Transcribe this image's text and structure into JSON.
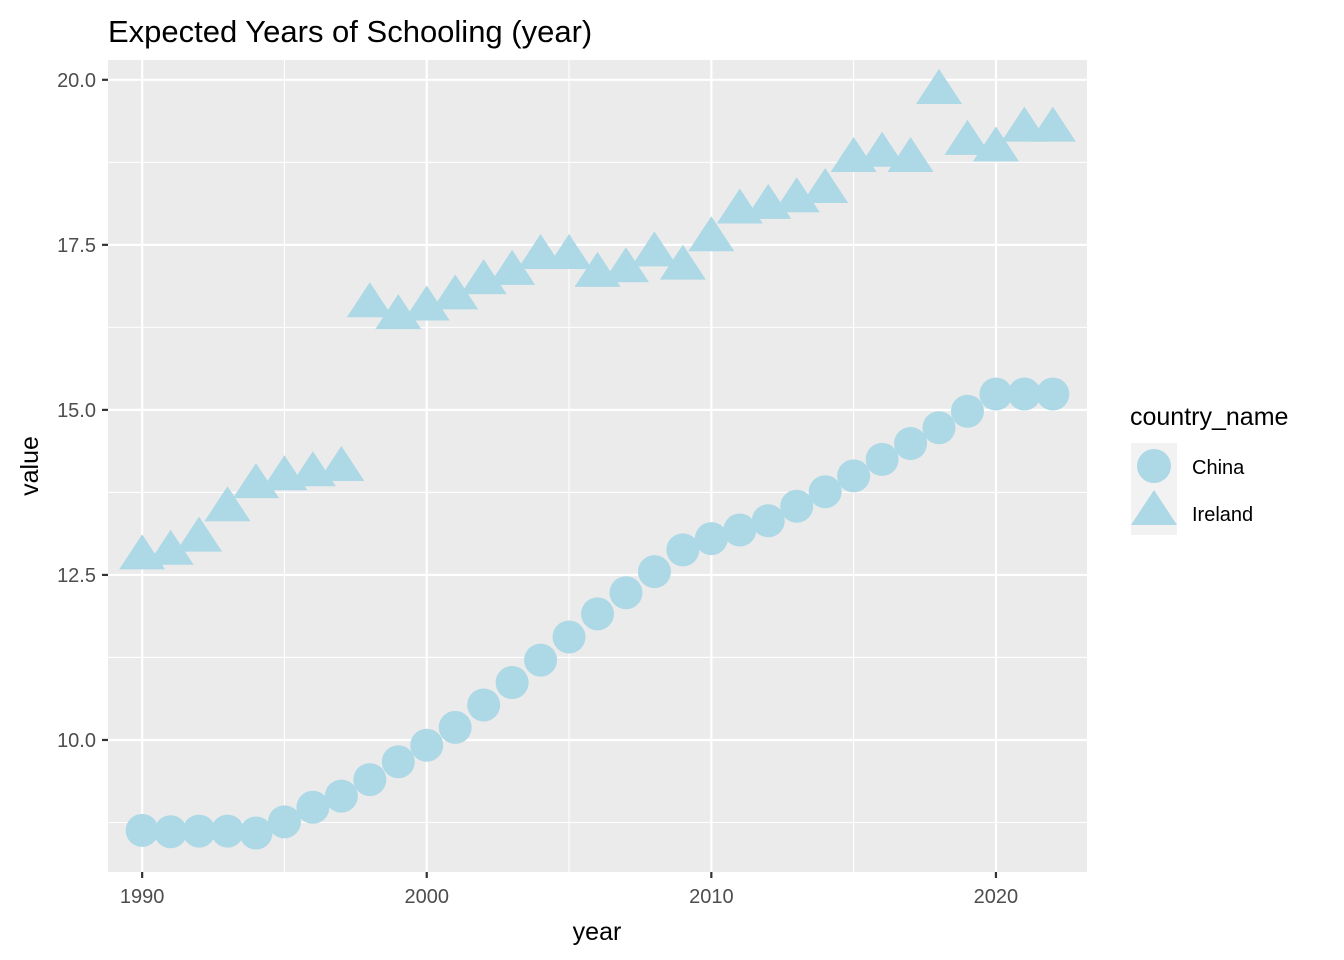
{
  "chart_data": {
    "type": "scatter",
    "title": "Expected Years of Schooling (year)",
    "xlabel": "year",
    "ylabel": "value",
    "xlim": [
      1988.8,
      1989.0
    ],
    "ylim": [
      8.0,
      20.3
    ],
    "x_ticks": [
      1990,
      2000,
      2010,
      2020
    ],
    "x_tick_labels": [
      "1990",
      "2000",
      "2010",
      "2020"
    ],
    "y_ticks": [
      10.0,
      12.5,
      15.0,
      17.5,
      20.0
    ],
    "y_tick_labels": [
      "10.0",
      "12.5",
      "15.0",
      "17.5",
      "20.0"
    ],
    "grid": true,
    "legend": {
      "title": "country_name",
      "position": "right"
    },
    "marker_color": "#add8e6",
    "panel_color": "#ebebeb",
    "series": [
      {
        "name": "China",
        "marker": "circle",
        "x": [
          1990,
          1991,
          1992,
          1993,
          1994,
          1995,
          1996,
          1997,
          1998,
          1999,
          2000,
          2001,
          2002,
          2003,
          2004,
          2005,
          2006,
          2007,
          2008,
          2009,
          2010,
          2011,
          2012,
          2013,
          2014,
          2015,
          2016,
          2017,
          2018,
          2019,
          2020,
          2021,
          2022
        ],
        "values": [
          8.63,
          8.61,
          8.62,
          8.62,
          8.59,
          8.76,
          8.98,
          9.15,
          9.4,
          9.67,
          9.92,
          10.19,
          10.53,
          10.87,
          11.21,
          11.56,
          11.91,
          12.23,
          12.55,
          12.88,
          13.05,
          13.18,
          13.32,
          13.54,
          13.76,
          14.0,
          14.25,
          14.49,
          14.73,
          14.98,
          15.24,
          15.24,
          15.24
        ]
      },
      {
        "name": "Ireland",
        "marker": "triangle",
        "x": [
          1990,
          1991,
          1992,
          1993,
          1994,
          1995,
          1996,
          1997,
          1998,
          1999,
          2000,
          2001,
          2002,
          2003,
          2004,
          2005,
          2006,
          2007,
          2008,
          2009,
          2010,
          2011,
          2012,
          2013,
          2014,
          2015,
          2016,
          2017,
          2018,
          2019,
          2020,
          2021,
          2022
        ],
        "values": [
          12.76,
          12.83,
          13.03,
          13.49,
          13.84,
          13.96,
          14.02,
          14.1,
          16.58,
          16.4,
          16.53,
          16.7,
          16.93,
          17.07,
          17.31,
          17.31,
          17.04,
          17.11,
          17.35,
          17.15,
          17.58,
          18.0,
          18.07,
          18.17,
          18.31,
          18.78,
          18.86,
          18.78,
          19.81,
          19.04,
          18.94,
          19.24,
          19.24
        ]
      }
    ]
  }
}
